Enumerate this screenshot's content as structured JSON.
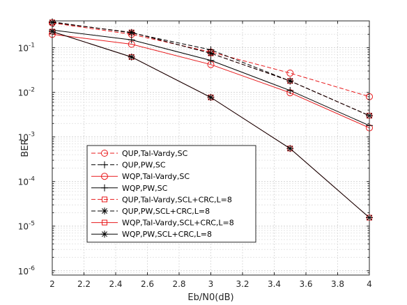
{
  "chart_data": {
    "type": "line",
    "xlabel": "Eb/N0(dB)",
    "ylabel": "BER",
    "x": [
      2,
      2.5,
      3,
      3.5,
      4
    ],
    "xlim": [
      2,
      4
    ],
    "ylim": [
      8e-07,
      0.4
    ],
    "yscale": "log",
    "grid": true,
    "legend_position": "bottom-left",
    "xticks": [
      "2",
      "2.2",
      "2.4",
      "2.6",
      "2.8",
      "3",
      "3.2",
      "3.4",
      "3.6",
      "3.8",
      "4"
    ],
    "yticks": [
      {
        "base": "10",
        "exp": "-6"
      },
      {
        "base": "10",
        "exp": "-5"
      },
      {
        "base": "10",
        "exp": "-4"
      },
      {
        "base": "10",
        "exp": "-3"
      },
      {
        "base": "10",
        "exp": "-2"
      },
      {
        "base": "10",
        "exp": "-1"
      }
    ],
    "series": [
      {
        "name": "QUP,Tal-Vardy,SC",
        "color": "#e8191b",
        "dash": "dashed",
        "marker": "circle",
        "values": [
          0.36,
          0.2,
          0.08,
          0.027,
          0.008
        ]
      },
      {
        "name": "QUP,PW,SC",
        "color": "#000000",
        "dash": "dashed",
        "marker": "plus",
        "values": [
          0.38,
          0.215,
          0.09,
          0.018,
          0.003
        ]
      },
      {
        "name": "WQP,Tal-Vardy,SC",
        "color": "#e8191b",
        "dash": "solid",
        "marker": "circle",
        "values": [
          0.2,
          0.12,
          0.042,
          0.0098,
          0.0016
        ]
      },
      {
        "name": "WQP,PW,SC",
        "color": "#000000",
        "dash": "solid",
        "marker": "plus",
        "values": [
          0.25,
          0.15,
          0.052,
          0.011,
          0.0018
        ]
      },
      {
        "name": "QUP,Tal-Vardy,SCL+CRC,L=8",
        "color": "#e8191b",
        "dash": "dashed",
        "marker": "square",
        "values": [
          0.37,
          0.22,
          0.075,
          0.018,
          0.003
        ]
      },
      {
        "name": "QUP,PW,SCL+CRC,L=8",
        "color": "#000000",
        "dash": "dashed",
        "marker": "asterisk",
        "values": [
          0.37,
          0.22,
          0.075,
          0.018,
          0.003
        ]
      },
      {
        "name": "WQP,Tal-Vardy,SCL+CRC,L=8",
        "color": "#e8191b",
        "dash": "solid",
        "marker": "square",
        "values": [
          0.23,
          0.062,
          0.0077,
          0.00055,
          1.55e-05
        ]
      },
      {
        "name": "WQP,PW,SCL+CRC,L=8",
        "color": "#000000",
        "dash": "solid",
        "marker": "asterisk",
        "values": [
          0.23,
          0.062,
          0.0077,
          0.00055,
          1.55e-05
        ]
      }
    ]
  }
}
